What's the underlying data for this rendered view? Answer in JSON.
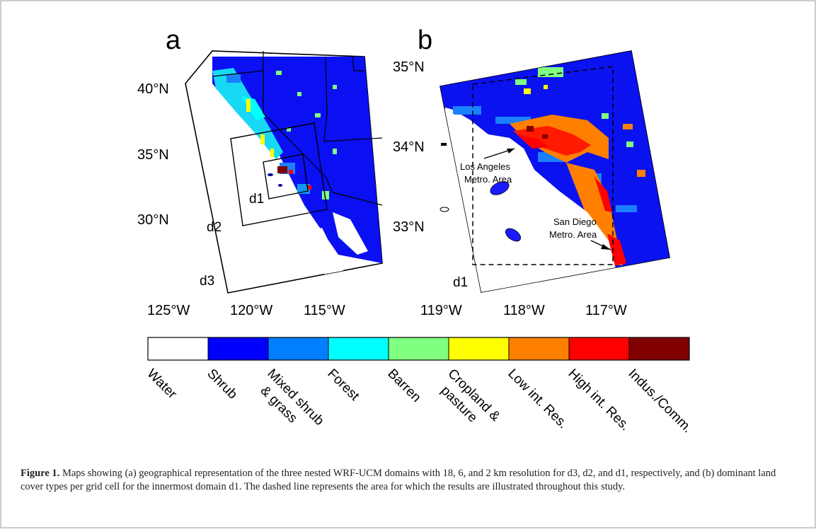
{
  "panels": {
    "a": {
      "letter": "a",
      "lat_labels": [
        "40°N",
        "35°N",
        "30°N"
      ],
      "lon_labels": [
        "125°W",
        "120°W",
        "115°W"
      ],
      "domain_labels": [
        "d1",
        "d2",
        "d3"
      ]
    },
    "b": {
      "letter": "b",
      "lat_labels": [
        "35°N",
        "34°N",
        "33°N"
      ],
      "lon_labels": [
        "119°W",
        "118°W",
        "117°W"
      ],
      "domain_label": "d1",
      "annotations": [
        {
          "line1": "Los Angeles",
          "line2": "Metro. Area"
        },
        {
          "line1": "San Diego",
          "line2": "Metro. Area"
        }
      ]
    }
  },
  "legend": {
    "categories": [
      {
        "label": "Water",
        "color": "#ffffff"
      },
      {
        "label": "Shrub",
        "color": "#0000ff"
      },
      {
        "label": "Mixed shrub & grass",
        "color": "#0080ff"
      },
      {
        "label": "Forest",
        "color": "#00ffff"
      },
      {
        "label": "Barren",
        "color": "#80ff80"
      },
      {
        "label": "Cropland & pasture",
        "color": "#ffff00"
      },
      {
        "label": "Low int. Res.",
        "color": "#ff8000"
      },
      {
        "label": "High int. Res.",
        "color": "#ff0000"
      },
      {
        "label": "Indus./Comm.",
        "color": "#800000"
      }
    ]
  },
  "caption": {
    "label": "Figure 1.",
    "text": "Maps showing (a) geographical representation of the three nested WRF-UCM domains with 18, 6, and 2 km resolution for d3, d2, and d1, respectively, and (b) dominant land cover types per grid cell for the innermost domain d1. The dashed line represents the area for which the results are illustrated throughout this study."
  }
}
